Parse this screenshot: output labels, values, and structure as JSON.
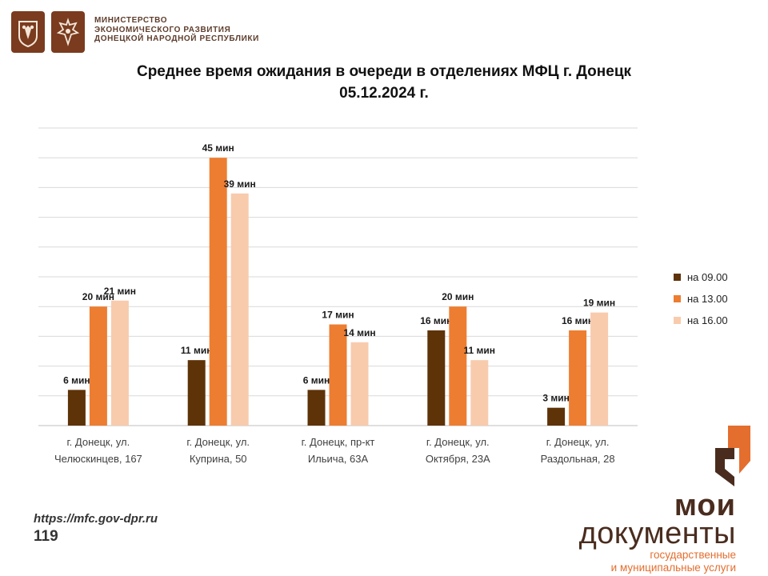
{
  "header": {
    "ministry_lines": [
      "МИНИСТЕРСТВО",
      "ЭКОНОМИЧЕСКОГО РАЗВИТИЯ",
      "ДОНЕЦКОЙ НАРОДНОЙ РЕСПУБЛИКИ"
    ]
  },
  "chart_data": {
    "type": "bar",
    "title_lines": [
      "Среднее время ожидания в очереди в отделениях МФЦ г. Донецк",
      "05.12.2024 г."
    ],
    "categories": [
      [
        "г. Донецк, ул.",
        "Челюскинцев, 167"
      ],
      [
        "г. Донецк, ул.",
        "Куприна, 50"
      ],
      [
        "г. Донецк, пр-кт",
        "Ильича, 63А"
      ],
      [
        "г. Донецк, ул.",
        "Октября, 23А"
      ],
      [
        "г. Донецк, ул.",
        "Раздольная, 28"
      ]
    ],
    "series": [
      {
        "name": "на 09.00",
        "values": [
          6,
          11,
          6,
          16,
          3
        ],
        "labels": [
          "6 мин",
          "11 мин",
          "6 мин",
          "16 мин",
          "3 мин"
        ],
        "color": "#5e3308"
      },
      {
        "name": "на 13.00",
        "values": [
          20,
          45,
          17,
          20,
          16
        ],
        "labels": [
          "20 мин",
          "45 мин",
          "17 мин",
          "20 мин",
          "16 мин"
        ],
        "color": "#ed7d31"
      },
      {
        "name": "на 16.00",
        "values": [
          21,
          39,
          14,
          11,
          19
        ],
        "labels": [
          "21 мин",
          "39 мин",
          "14 мин",
          "11 мин",
          "19 мин"
        ],
        "color": "#f8cbad"
      }
    ],
    "ylim": [
      0,
      50
    ],
    "grid": true,
    "legend_position": "right"
  },
  "colors": {
    "emblem_bg": "#7a3b1e",
    "brand_brown": "#4a2c1e",
    "brand_orange": "#e46e2e"
  },
  "footer": {
    "url": "https://mfc.gov-dpr.ru",
    "page_number": "119"
  },
  "brand": {
    "line1": "мои",
    "line2": "документы",
    "line3": "государственные",
    "line4": "и муниципальные услуги"
  }
}
